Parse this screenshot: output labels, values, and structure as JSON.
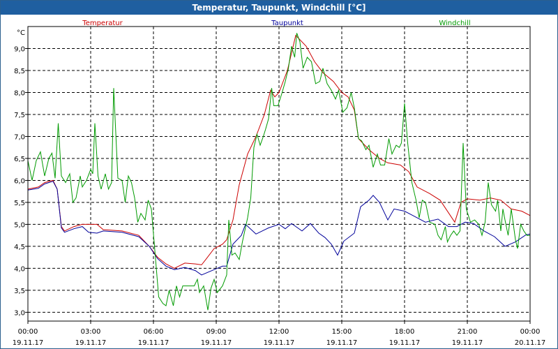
{
  "title": "Temperatur, Taupunkt, Windchill [°C]",
  "chart_data": {
    "type": "line",
    "unit": "°C",
    "grid": true,
    "ylim": [
      2.8,
      9.5
    ],
    "xlim": [
      0,
      24
    ],
    "y_ticks": [
      3.0,
      3.5,
      4.0,
      4.5,
      5.0,
      5.5,
      6.0,
      6.5,
      7.0,
      7.5,
      8.0,
      8.5,
      9.0
    ],
    "y_tick_labels": [
      "3,0",
      "3,5",
      "4,0",
      "4,5",
      "5,0",
      "5,5",
      "6,0",
      "6,5",
      "7,0",
      "7,5",
      "8,0",
      "8,5",
      "9,0"
    ],
    "x_ticks": [
      0,
      3,
      6,
      9,
      12,
      15,
      18,
      21,
      24
    ],
    "x_tick_labels": [
      {
        "time": "00:00",
        "date": "19.11.17"
      },
      {
        "time": "03:00",
        "date": "19.11.17"
      },
      {
        "time": "06:00",
        "date": "19.11.17"
      },
      {
        "time": "09:00",
        "date": "19.11.17"
      },
      {
        "time": "12:00",
        "date": "19.11.17"
      },
      {
        "time": "15:00",
        "date": "19.11.17"
      },
      {
        "time": "18:00",
        "date": "19.11.17"
      },
      {
        "time": "21:00",
        "date": "19.11.17"
      },
      {
        "time": "00:00",
        "date": "20.11.17"
      }
    ],
    "series": [
      {
        "name": "Temperatur",
        "color": "#cc0000",
        "points": [
          [
            0,
            5.8
          ],
          [
            0.5,
            5.85
          ],
          [
            0.8,
            5.95
          ],
          [
            1.2,
            6.0
          ],
          [
            1.4,
            5.8
          ],
          [
            1.6,
            4.95
          ],
          [
            1.75,
            4.85
          ],
          [
            2.2,
            4.95
          ],
          [
            2.6,
            5.0
          ],
          [
            3.3,
            5.0
          ],
          [
            3.6,
            4.88
          ],
          [
            4.5,
            4.85
          ],
          [
            5.3,
            4.75
          ],
          [
            5.8,
            4.5
          ],
          [
            6.2,
            4.25
          ],
          [
            6.6,
            4.1
          ],
          [
            7.0,
            4.0
          ],
          [
            7.5,
            4.12
          ],
          [
            8.0,
            4.1
          ],
          [
            8.3,
            4.08
          ],
          [
            8.5,
            4.2
          ],
          [
            8.9,
            4.45
          ],
          [
            9.3,
            4.55
          ],
          [
            9.5,
            4.65
          ],
          [
            9.8,
            5.1
          ],
          [
            10.1,
            5.9
          ],
          [
            10.5,
            6.6
          ],
          [
            10.9,
            7.0
          ],
          [
            11.3,
            7.5
          ],
          [
            11.6,
            8.05
          ],
          [
            11.8,
            7.9
          ],
          [
            12.0,
            8.0
          ],
          [
            12.4,
            8.5
          ],
          [
            12.7,
            9.1
          ],
          [
            12.8,
            9.3
          ],
          [
            13.3,
            9.05
          ],
          [
            13.7,
            8.7
          ],
          [
            14.1,
            8.45
          ],
          [
            14.6,
            8.25
          ],
          [
            15.0,
            8.0
          ],
          [
            15.3,
            7.9
          ],
          [
            15.6,
            7.6
          ],
          [
            15.8,
            6.95
          ],
          [
            16.3,
            6.7
          ],
          [
            16.8,
            6.5
          ],
          [
            17.2,
            6.4
          ],
          [
            17.8,
            6.35
          ],
          [
            18.2,
            6.2
          ],
          [
            18.6,
            5.85
          ],
          [
            19.2,
            5.7
          ],
          [
            19.7,
            5.55
          ],
          [
            20.4,
            5.05
          ],
          [
            20.7,
            5.5
          ],
          [
            21.0,
            5.58
          ],
          [
            21.6,
            5.55
          ],
          [
            22.1,
            5.6
          ],
          [
            22.6,
            5.55
          ],
          [
            23.1,
            5.35
          ],
          [
            23.6,
            5.3
          ],
          [
            24.0,
            5.2
          ]
        ]
      },
      {
        "name": "Taupunkt",
        "color": "#00009a",
        "points": [
          [
            0,
            5.78
          ],
          [
            0.5,
            5.82
          ],
          [
            0.8,
            5.92
          ],
          [
            1.2,
            5.98
          ],
          [
            1.4,
            5.8
          ],
          [
            1.6,
            4.92
          ],
          [
            1.75,
            4.82
          ],
          [
            2.2,
            4.9
          ],
          [
            2.6,
            4.95
          ],
          [
            2.9,
            4.82
          ],
          [
            3.3,
            4.8
          ],
          [
            3.6,
            4.85
          ],
          [
            4.5,
            4.82
          ],
          [
            5.3,
            4.72
          ],
          [
            5.8,
            4.5
          ],
          [
            6.2,
            4.22
          ],
          [
            6.6,
            4.05
          ],
          [
            7.0,
            3.97
          ],
          [
            7.5,
            4.02
          ],
          [
            8.0,
            3.95
          ],
          [
            8.3,
            3.85
          ],
          [
            8.8,
            3.95
          ],
          [
            9.3,
            4.05
          ],
          [
            9.5,
            4.05
          ],
          [
            9.8,
            4.55
          ],
          [
            10.2,
            4.75
          ],
          [
            10.4,
            5.0
          ],
          [
            10.9,
            4.78
          ],
          [
            11.5,
            4.92
          ],
          [
            12.0,
            5.0
          ],
          [
            12.3,
            4.9
          ],
          [
            12.6,
            5.02
          ],
          [
            13.1,
            4.85
          ],
          [
            13.5,
            5.02
          ],
          [
            13.9,
            4.8
          ],
          [
            14.2,
            4.7
          ],
          [
            14.5,
            4.55
          ],
          [
            14.8,
            4.3
          ],
          [
            15.1,
            4.62
          ],
          [
            15.6,
            4.8
          ],
          [
            15.9,
            5.4
          ],
          [
            16.3,
            5.55
          ],
          [
            16.5,
            5.66
          ],
          [
            16.8,
            5.5
          ],
          [
            17.2,
            5.1
          ],
          [
            17.5,
            5.35
          ],
          [
            18.0,
            5.3
          ],
          [
            18.4,
            5.2
          ],
          [
            19.0,
            5.05
          ],
          [
            19.6,
            5.12
          ],
          [
            20.1,
            4.95
          ],
          [
            20.5,
            4.95
          ],
          [
            20.9,
            5.05
          ],
          [
            21.3,
            5.02
          ],
          [
            21.8,
            4.85
          ],
          [
            22.3,
            4.72
          ],
          [
            22.8,
            4.5
          ],
          [
            23.3,
            4.6
          ],
          [
            23.8,
            4.76
          ],
          [
            24.0,
            4.78
          ]
        ]
      },
      {
        "name": "Windchill",
        "color": "#009a00",
        "points": [
          [
            0,
            6.45
          ],
          [
            0.2,
            6.0
          ],
          [
            0.4,
            6.45
          ],
          [
            0.6,
            6.65
          ],
          [
            0.8,
            6.1
          ],
          [
            1.0,
            6.5
          ],
          [
            1.15,
            6.62
          ],
          [
            1.3,
            6.05
          ],
          [
            1.45,
            7.3
          ],
          [
            1.6,
            6.1
          ],
          [
            1.8,
            5.95
          ],
          [
            2.0,
            6.15
          ],
          [
            2.15,
            5.5
          ],
          [
            2.3,
            5.6
          ],
          [
            2.5,
            6.1
          ],
          [
            2.6,
            5.85
          ],
          [
            2.8,
            6.0
          ],
          [
            3.0,
            6.25
          ],
          [
            3.1,
            6.15
          ],
          [
            3.2,
            7.3
          ],
          [
            3.35,
            6.1
          ],
          [
            3.5,
            5.8
          ],
          [
            3.7,
            6.15
          ],
          [
            3.85,
            5.8
          ],
          [
            4.0,
            5.95
          ],
          [
            4.1,
            8.1
          ],
          [
            4.3,
            6.05
          ],
          [
            4.5,
            6.0
          ],
          [
            4.65,
            5.5
          ],
          [
            4.8,
            6.1
          ],
          [
            4.95,
            5.95
          ],
          [
            5.1,
            5.6
          ],
          [
            5.25,
            5.05
          ],
          [
            5.4,
            5.25
          ],
          [
            5.6,
            5.1
          ],
          [
            5.75,
            5.55
          ],
          [
            5.9,
            5.35
          ],
          [
            6.05,
            4.5
          ],
          [
            6.25,
            3.35
          ],
          [
            6.45,
            3.2
          ],
          [
            6.6,
            3.15
          ],
          [
            6.75,
            3.5
          ],
          [
            6.95,
            3.15
          ],
          [
            7.1,
            3.6
          ],
          [
            7.25,
            3.35
          ],
          [
            7.4,
            3.6
          ],
          [
            7.7,
            3.6
          ],
          [
            7.95,
            3.6
          ],
          [
            8.1,
            3.75
          ],
          [
            8.2,
            3.45
          ],
          [
            8.4,
            3.6
          ],
          [
            8.6,
            3.05
          ],
          [
            8.75,
            3.55
          ],
          [
            8.9,
            3.75
          ],
          [
            9.05,
            3.45
          ],
          [
            9.3,
            3.6
          ],
          [
            9.5,
            3.85
          ],
          [
            9.6,
            5.1
          ],
          [
            9.75,
            4.3
          ],
          [
            9.9,
            4.35
          ],
          [
            10.1,
            4.2
          ],
          [
            10.25,
            4.6
          ],
          [
            10.5,
            5.15
          ],
          [
            10.65,
            5.6
          ],
          [
            10.8,
            6.75
          ],
          [
            10.95,
            7.05
          ],
          [
            11.1,
            6.8
          ],
          [
            11.25,
            7.0
          ],
          [
            11.35,
            7.15
          ],
          [
            11.5,
            7.4
          ],
          [
            11.65,
            8.1
          ],
          [
            11.75,
            7.7
          ],
          [
            11.95,
            7.7
          ],
          [
            12.15,
            8.0
          ],
          [
            12.3,
            8.25
          ],
          [
            12.45,
            8.55
          ],
          [
            12.6,
            9.05
          ],
          [
            12.75,
            8.8
          ],
          [
            12.85,
            9.35
          ],
          [
            13.0,
            9.15
          ],
          [
            13.15,
            8.55
          ],
          [
            13.35,
            8.8
          ],
          [
            13.55,
            8.7
          ],
          [
            13.75,
            8.2
          ],
          [
            13.95,
            8.25
          ],
          [
            14.1,
            8.55
          ],
          [
            14.3,
            8.2
          ],
          [
            14.5,
            8.05
          ],
          [
            14.7,
            7.85
          ],
          [
            14.85,
            8.05
          ],
          [
            15.05,
            7.55
          ],
          [
            15.25,
            7.65
          ],
          [
            15.45,
            8.0
          ],
          [
            15.6,
            7.65
          ],
          [
            15.8,
            6.95
          ],
          [
            15.95,
            6.9
          ],
          [
            16.15,
            6.7
          ],
          [
            16.3,
            6.8
          ],
          [
            16.5,
            6.3
          ],
          [
            16.7,
            6.6
          ],
          [
            16.85,
            6.35
          ],
          [
            17.05,
            6.35
          ],
          [
            17.25,
            6.95
          ],
          [
            17.4,
            6.6
          ],
          [
            17.6,
            6.8
          ],
          [
            17.75,
            6.75
          ],
          [
            17.85,
            6.85
          ],
          [
            18.0,
            7.75
          ],
          [
            18.15,
            6.85
          ],
          [
            18.35,
            5.95
          ],
          [
            18.55,
            5.55
          ],
          [
            18.7,
            5.15
          ],
          [
            18.85,
            5.55
          ],
          [
            19.0,
            5.5
          ],
          [
            19.2,
            5.05
          ],
          [
            19.45,
            5.0
          ],
          [
            19.6,
            4.75
          ],
          [
            19.75,
            4.65
          ],
          [
            19.95,
            4.95
          ],
          [
            20.05,
            4.6
          ],
          [
            20.2,
            4.75
          ],
          [
            20.35,
            4.85
          ],
          [
            20.5,
            4.75
          ],
          [
            20.65,
            4.85
          ],
          [
            20.8,
            6.85
          ],
          [
            20.95,
            5.35
          ],
          [
            21.15,
            5.05
          ],
          [
            21.35,
            5.1
          ],
          [
            21.55,
            5.0
          ],
          [
            21.7,
            4.75
          ],
          [
            21.85,
            5.05
          ],
          [
            22.0,
            5.95
          ],
          [
            22.15,
            5.45
          ],
          [
            22.35,
            5.3
          ],
          [
            22.45,
            5.55
          ],
          [
            22.6,
            4.85
          ],
          [
            22.7,
            5.35
          ],
          [
            22.8,
            5.1
          ],
          [
            22.95,
            4.75
          ],
          [
            23.1,
            5.35
          ],
          [
            23.3,
            4.65
          ],
          [
            23.4,
            4.45
          ],
          [
            23.55,
            5.0
          ],
          [
            23.7,
            4.85
          ],
          [
            23.85,
            4.75
          ],
          [
            24.0,
            4.75
          ]
        ]
      }
    ]
  }
}
